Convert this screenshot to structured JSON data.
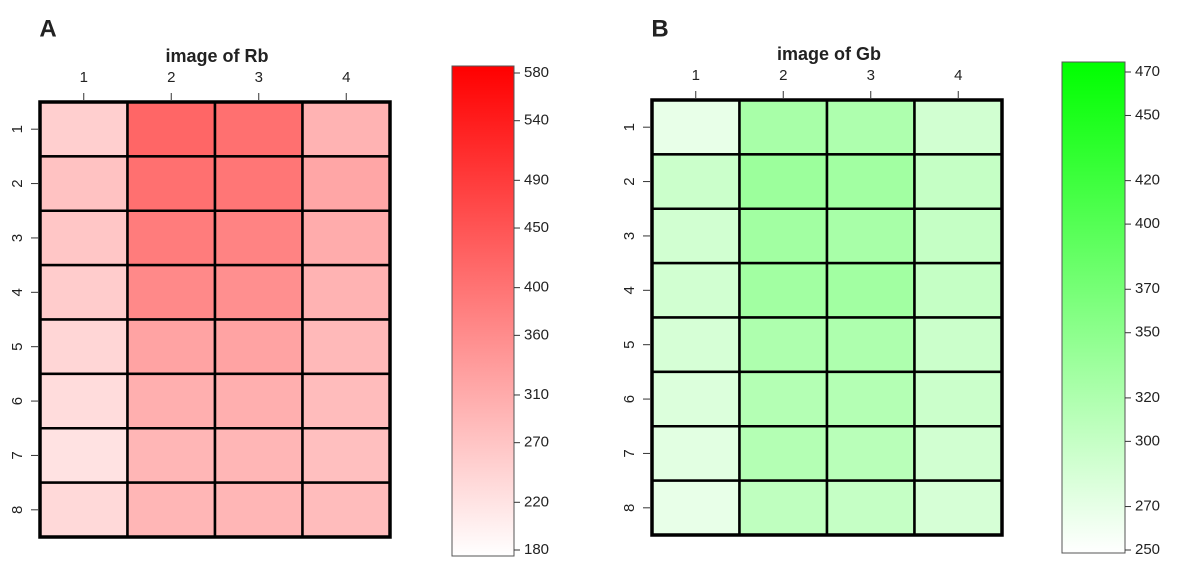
{
  "chart_data": [
    {
      "type": "heatmap",
      "panel_label": "A",
      "title": "image of Rb",
      "xlim": [
        0.5,
        4.5
      ],
      "xticks": [
        1,
        2,
        3,
        4
      ],
      "ylim": [
        8.5,
        0.5
      ],
      "yticks": [
        1,
        2,
        3,
        4,
        5,
        6,
        7,
        8
      ],
      "zlim": [
        180,
        580
      ],
      "zticks": [
        180,
        220,
        270,
        310,
        360,
        400,
        450,
        490,
        540,
        580
      ],
      "colors": [
        "#ffffff",
        "#ff0000"
      ],
      "values": [
        [
          255,
          420,
          405,
          300
        ],
        [
          275,
          405,
          395,
          320
        ],
        [
          270,
          385,
          375,
          310
        ],
        [
          260,
          365,
          355,
          300
        ],
        [
          245,
          325,
          325,
          290
        ],
        [
          235,
          305,
          305,
          285
        ],
        [
          225,
          295,
          295,
          280
        ],
        [
          240,
          295,
          295,
          285
        ]
      ]
    },
    {
      "type": "heatmap",
      "panel_label": "B",
      "title": "image of Gb",
      "xlim": [
        0.5,
        4.5
      ],
      "xticks": [
        1,
        2,
        3,
        4
      ],
      "ylim": [
        8.5,
        0.5
      ],
      "yticks": [
        1,
        2,
        3,
        4,
        5,
        6,
        7,
        8
      ],
      "zlim": [
        250,
        470
      ],
      "zticks": [
        250,
        270,
        300,
        320,
        350,
        370,
        400,
        420,
        450,
        470
      ],
      "colors": [
        "#ffffff",
        "#00ff00"
      ],
      "values": [
        [
          270,
          325,
          320,
          290
        ],
        [
          295,
          335,
          330,
          300
        ],
        [
          290,
          330,
          325,
          300
        ],
        [
          290,
          330,
          330,
          300
        ],
        [
          285,
          320,
          320,
          295
        ],
        [
          280,
          315,
          315,
          295
        ],
        [
          275,
          315,
          310,
          290
        ],
        [
          270,
          305,
          300,
          285
        ]
      ]
    }
  ]
}
